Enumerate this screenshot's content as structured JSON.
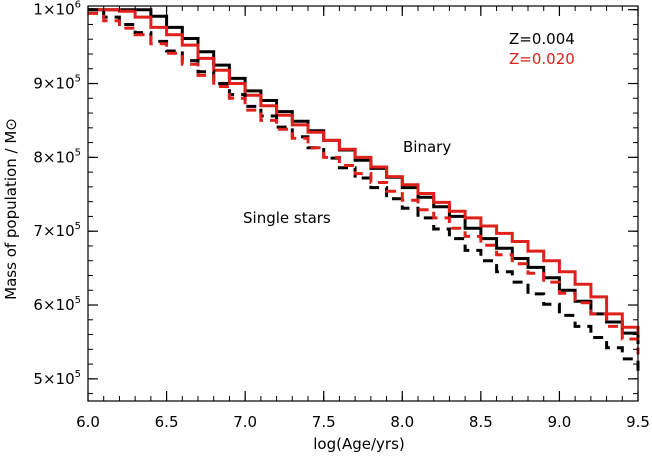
{
  "chart_data": {
    "type": "line",
    "xlabel": "log(Age/yrs)",
    "ylabel": "Mass of population / M⊙",
    "xlim": [
      6.0,
      9.5
    ],
    "ylim": [
      470000,
      1005000
    ],
    "x_ticks": [
      6.0,
      6.5,
      7.0,
      7.5,
      8.0,
      8.5,
      9.0,
      9.5
    ],
    "x_tick_labels": [
      "6.0",
      "6.5",
      "7.0",
      "7.5",
      "8.0",
      "8.5",
      "9.0",
      "9.5"
    ],
    "y_ticks": [
      {
        "value": 500000,
        "mantissa": "5",
        "base": "×10",
        "exp": "5"
      },
      {
        "value": 600000,
        "mantissa": "6",
        "base": "×10",
        "exp": "5"
      },
      {
        "value": 700000,
        "mantissa": "7",
        "base": "×10",
        "exp": "5"
      },
      {
        "value": 800000,
        "mantissa": "8",
        "base": "×10",
        "exp": "5"
      },
      {
        "value": 900000,
        "mantissa": "9",
        "base": "×10",
        "exp": "5"
      },
      {
        "value": 1000000,
        "mantissa": "1",
        "base": "×10",
        "exp": "6"
      }
    ],
    "grid": false,
    "legend": {
      "placement": "top-right",
      "entries": [
        {
          "label": "Z=0.004",
          "color": "#000000"
        },
        {
          "label": "Z=0.020",
          "color": "#e0201a"
        }
      ]
    },
    "annotations": [
      {
        "text": "Binary",
        "x": 8.0,
        "y": 817000
      },
      {
        "text": "Single stars",
        "x": 7.3,
        "y": 720000
      }
    ],
    "step_x": [
      6.0,
      6.1,
      6.2,
      6.3,
      6.4,
      6.5,
      6.6,
      6.7,
      6.8,
      6.9,
      7.0,
      7.1,
      7.2,
      7.3,
      7.4,
      7.5,
      7.6,
      7.7,
      7.8,
      7.9,
      8.0,
      8.1,
      8.2,
      8.3,
      8.4,
      8.5,
      8.6,
      8.7,
      8.8,
      8.9,
      9.0,
      9.1,
      9.2,
      9.3,
      9.4,
      9.5
    ],
    "series": [
      {
        "color": "#000000",
        "dash": "solid",
        "values": [
          1000000,
          1000000,
          1000000,
          1000000,
          991000,
          976000,
          961000,
          943000,
          925000,
          907000,
          890000,
          877000,
          862000,
          849000,
          836000,
          823000,
          810000,
          796000,
          785000,
          773000,
          759000,
          746000,
          733000,
          720000,
          704000,
          690000,
          677000,
          663000,
          651000,
          637000,
          620000,
          605000,
          588000,
          577000,
          562000,
          547000
        ]
      },
      {
        "color": "#e0201a",
        "dash": "solid",
        "values": [
          1000000,
          1000000,
          998000,
          990000,
          976000,
          966000,
          952000,
          934000,
          918000,
          900000,
          884000,
          870000,
          857000,
          844000,
          834000,
          823000,
          811000,
          800000,
          787000,
          774000,
          763000,
          751000,
          739000,
          727000,
          718000,
          707000,
          697000,
          686000,
          673000,
          660000,
          645000,
          628000,
          611000,
          588000,
          570000,
          560000
        ]
      },
      {
        "color": "#000000",
        "dash": "dashed",
        "values": [
          1000000,
          990000,
          980000,
          969000,
          957000,
          944000,
          931000,
          916000,
          900000,
          885000,
          869000,
          856000,
          841000,
          828000,
          813000,
          799000,
          786000,
          772000,
          759000,
          744000,
          731000,
          718000,
          703000,
          690000,
          674000,
          660000,
          645000,
          631000,
          615000,
          601000,
          586000,
          571000,
          556000,
          542000,
          527000,
          503000
        ]
      },
      {
        "color": "#e0201a",
        "dash": "dashed",
        "values": [
          995000,
          985000,
          975000,
          966000,
          954000,
          941000,
          926000,
          911000,
          896000,
          880000,
          864000,
          850000,
          838000,
          826000,
          813000,
          800000,
          789000,
          778000,
          766000,
          754000,
          742000,
          729000,
          718000,
          704000,
          693000,
          681000,
          668000,
          656000,
          643000,
          631000,
          616000,
          603000,
          588000,
          571000,
          554000,
          533000
        ]
      }
    ]
  }
}
